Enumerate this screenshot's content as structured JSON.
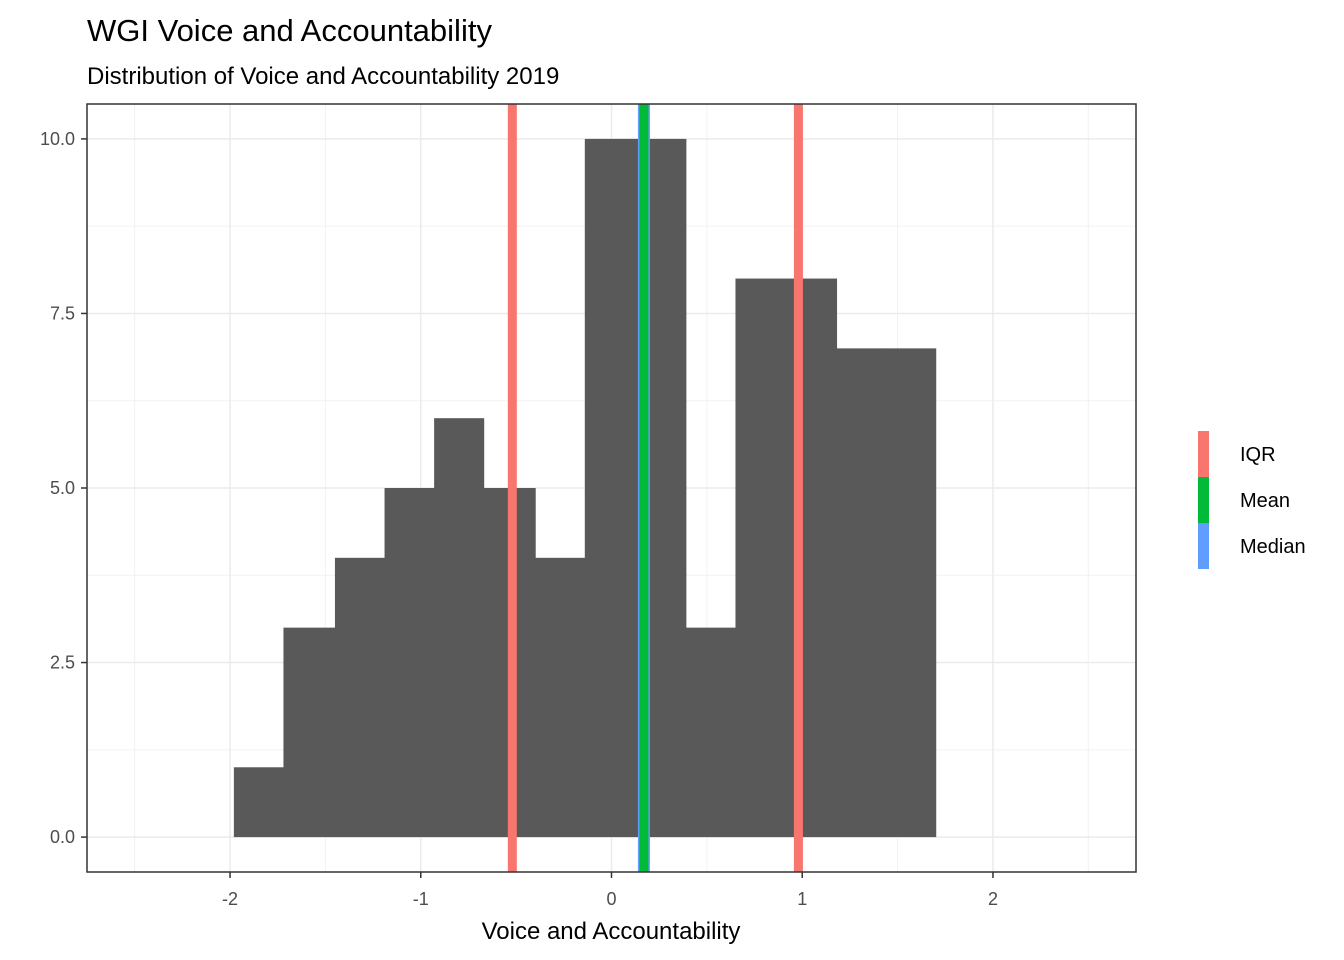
{
  "chart_data": {
    "type": "bar",
    "title": "WGI Voice and Accountability",
    "subtitle": "Distribution of Voice and Accountability 2019",
    "xlabel": "Voice and Accountability",
    "ylabel": "",
    "xlim": [
      -2.75,
      2.75
    ],
    "ylim": [
      -0.5,
      10.5
    ],
    "x_ticks": [
      -2,
      -1,
      0,
      1,
      2
    ],
    "x_tick_labels": [
      "-2",
      "-1",
      "0",
      "1",
      "2"
    ],
    "y_ticks": [
      0,
      2.5,
      5,
      7.5,
      10
    ],
    "y_tick_labels": [
      "0.0",
      "2.5",
      "5.0",
      "7.5",
      "10.0"
    ],
    "grid": true,
    "bar_color": "#595959",
    "bins": [
      {
        "x0": -1.98,
        "x1": -1.72,
        "count": 1
      },
      {
        "x0": -1.72,
        "x1": -1.45,
        "count": 3
      },
      {
        "x0": -1.45,
        "x1": -1.19,
        "count": 4
      },
      {
        "x0": -1.19,
        "x1": -0.93,
        "count": 5
      },
      {
        "x0": -0.93,
        "x1": -0.67,
        "count": 6
      },
      {
        "x0": -0.67,
        "x1": -0.4,
        "count": 5
      },
      {
        "x0": -0.4,
        "x1": -0.14,
        "count": 4
      },
      {
        "x0": -0.14,
        "x1": 0.12,
        "count": 10
      },
      {
        "x0": 0.12,
        "x1": 0.39,
        "count": 10
      },
      {
        "x0": 0.39,
        "x1": 0.65,
        "count": 3
      },
      {
        "x0": 0.65,
        "x1": 0.91,
        "count": 8
      },
      {
        "x0": 0.91,
        "x1": 1.18,
        "count": 8
      },
      {
        "x0": 1.18,
        "x1": 1.44,
        "count": 7
      },
      {
        "x0": 1.44,
        "x1": 1.7,
        "count": 7
      }
    ],
    "vlines": [
      {
        "series": "IQR",
        "x": -0.52
      },
      {
        "series": "IQR",
        "x": 0.98
      },
      {
        "series": "Median",
        "x": 0.17
      },
      {
        "series": "Mean",
        "x": 0.17
      }
    ],
    "legend": {
      "placement": "right",
      "entries": [
        {
          "name": "IQR",
          "color": "#F8766D"
        },
        {
          "name": "Mean",
          "color": "#00BA38"
        },
        {
          "name": "Median",
          "color": "#619CFF"
        }
      ]
    }
  }
}
